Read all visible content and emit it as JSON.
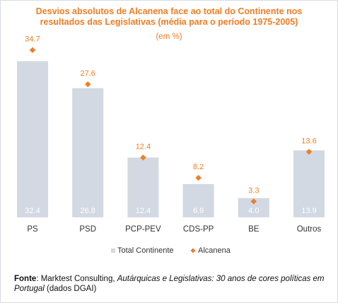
{
  "chart_data": {
    "type": "bar",
    "title_line1": "Desvios absolutos de Alcanena face ao total do Continente nos",
    "title_line2": "resultados das Legislativas (média para o período 1975-2005)",
    "subtitle": "(em %)",
    "categories": [
      "PS",
      "PSD",
      "PCP-PEV",
      "CDS-PP",
      "BE",
      "Outros"
    ],
    "series": [
      {
        "name": "Total Continente",
        "kind": "bar",
        "color": "#d2d9e3",
        "label_color": "#ffffff",
        "values": [
          32.4,
          26.8,
          12.4,
          6.9,
          4.0,
          13.9
        ],
        "labels": [
          "32.4",
          "26.8",
          "12.4",
          "6.9",
          "4.0",
          "13.9"
        ]
      },
      {
        "name": "Alcanena",
        "kind": "marker",
        "marker": "diamond",
        "color": "#f07d24",
        "values": [
          34.7,
          27.6,
          12.4,
          8.2,
          3.3,
          13.6
        ],
        "labels": [
          "34.7",
          "27.6",
          "12.4",
          "8.2",
          "3.3",
          "13.6"
        ]
      }
    ],
    "ylim": [
      0,
      42
    ],
    "grid": false,
    "legend_placement": "bottom-center"
  },
  "source": {
    "label": "Fonte",
    "text_pre": " Marktest Consulting, ",
    "text_italic": "Autárquicas e Legislativas: 30 anos de cores políticas em Portugal",
    "text_post": " (dados DGAI)"
  }
}
